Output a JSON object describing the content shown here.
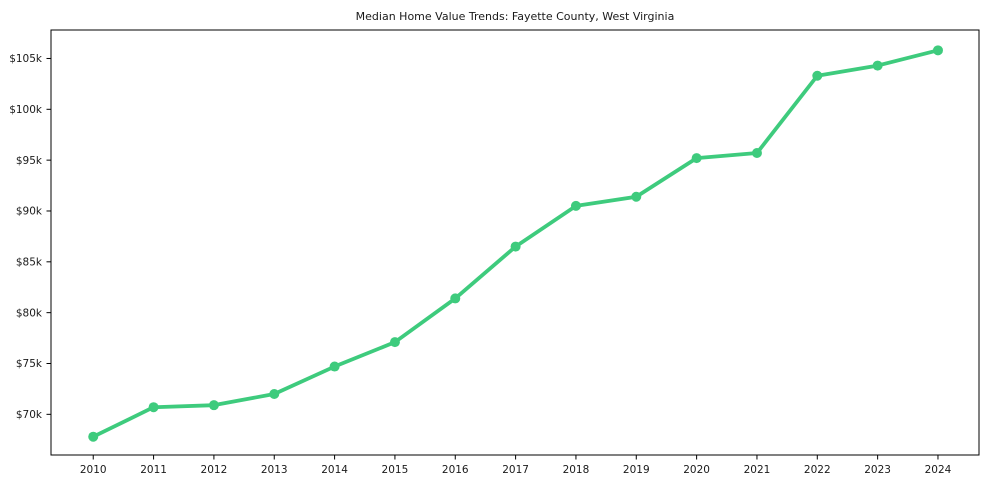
{
  "figure": {
    "background": "#ffffff",
    "text_color": "#1a1a1a",
    "spine_color": "#000000"
  },
  "chart_data": {
    "type": "line",
    "title": "Median Home Value Trends: Fayette County, West Virginia",
    "x": [
      2010,
      2011,
      2012,
      2013,
      2014,
      2015,
      2016,
      2017,
      2018,
      2019,
      2020,
      2021,
      2022,
      2023,
      2024
    ],
    "values": [
      67800,
      70700,
      70900,
      72000,
      74700,
      77100,
      81400,
      86500,
      90500,
      91400,
      95200,
      95700,
      103300,
      104300,
      105800
    ],
    "line_color": "#3ecb7d",
    "marker": "circle",
    "line_width": 3.8,
    "marker_radius": 5,
    "xlabel": "",
    "ylabel": "",
    "xlim": [
      2009.3,
      2024.68
    ],
    "ylim": [
      66000,
      107800
    ],
    "xticks": [
      {
        "value": 2010,
        "label": "2010"
      },
      {
        "value": 2011,
        "label": "2011"
      },
      {
        "value": 2012,
        "label": "2012"
      },
      {
        "value": 2013,
        "label": "2013"
      },
      {
        "value": 2014,
        "label": "2014"
      },
      {
        "value": 2015,
        "label": "2015"
      },
      {
        "value": 2016,
        "label": "2016"
      },
      {
        "value": 2017,
        "label": "2017"
      },
      {
        "value": 2018,
        "label": "2018"
      },
      {
        "value": 2019,
        "label": "2019"
      },
      {
        "value": 2020,
        "label": "2020"
      },
      {
        "value": 2021,
        "label": "2021"
      },
      {
        "value": 2022,
        "label": "2022"
      },
      {
        "value": 2023,
        "label": "2023"
      },
      {
        "value": 2024,
        "label": "2024"
      }
    ],
    "yticks": [
      {
        "value": 70000,
        "label": "$70k"
      },
      {
        "value": 75000,
        "label": "$75k"
      },
      {
        "value": 80000,
        "label": "$80k"
      },
      {
        "value": 85000,
        "label": "$85k"
      },
      {
        "value": 90000,
        "label": "$90k"
      },
      {
        "value": 95000,
        "label": "$95k"
      },
      {
        "value": 100000,
        "label": "$100k"
      },
      {
        "value": 105000,
        "label": "$105k"
      }
    ],
    "grid": false,
    "legend": false
  }
}
